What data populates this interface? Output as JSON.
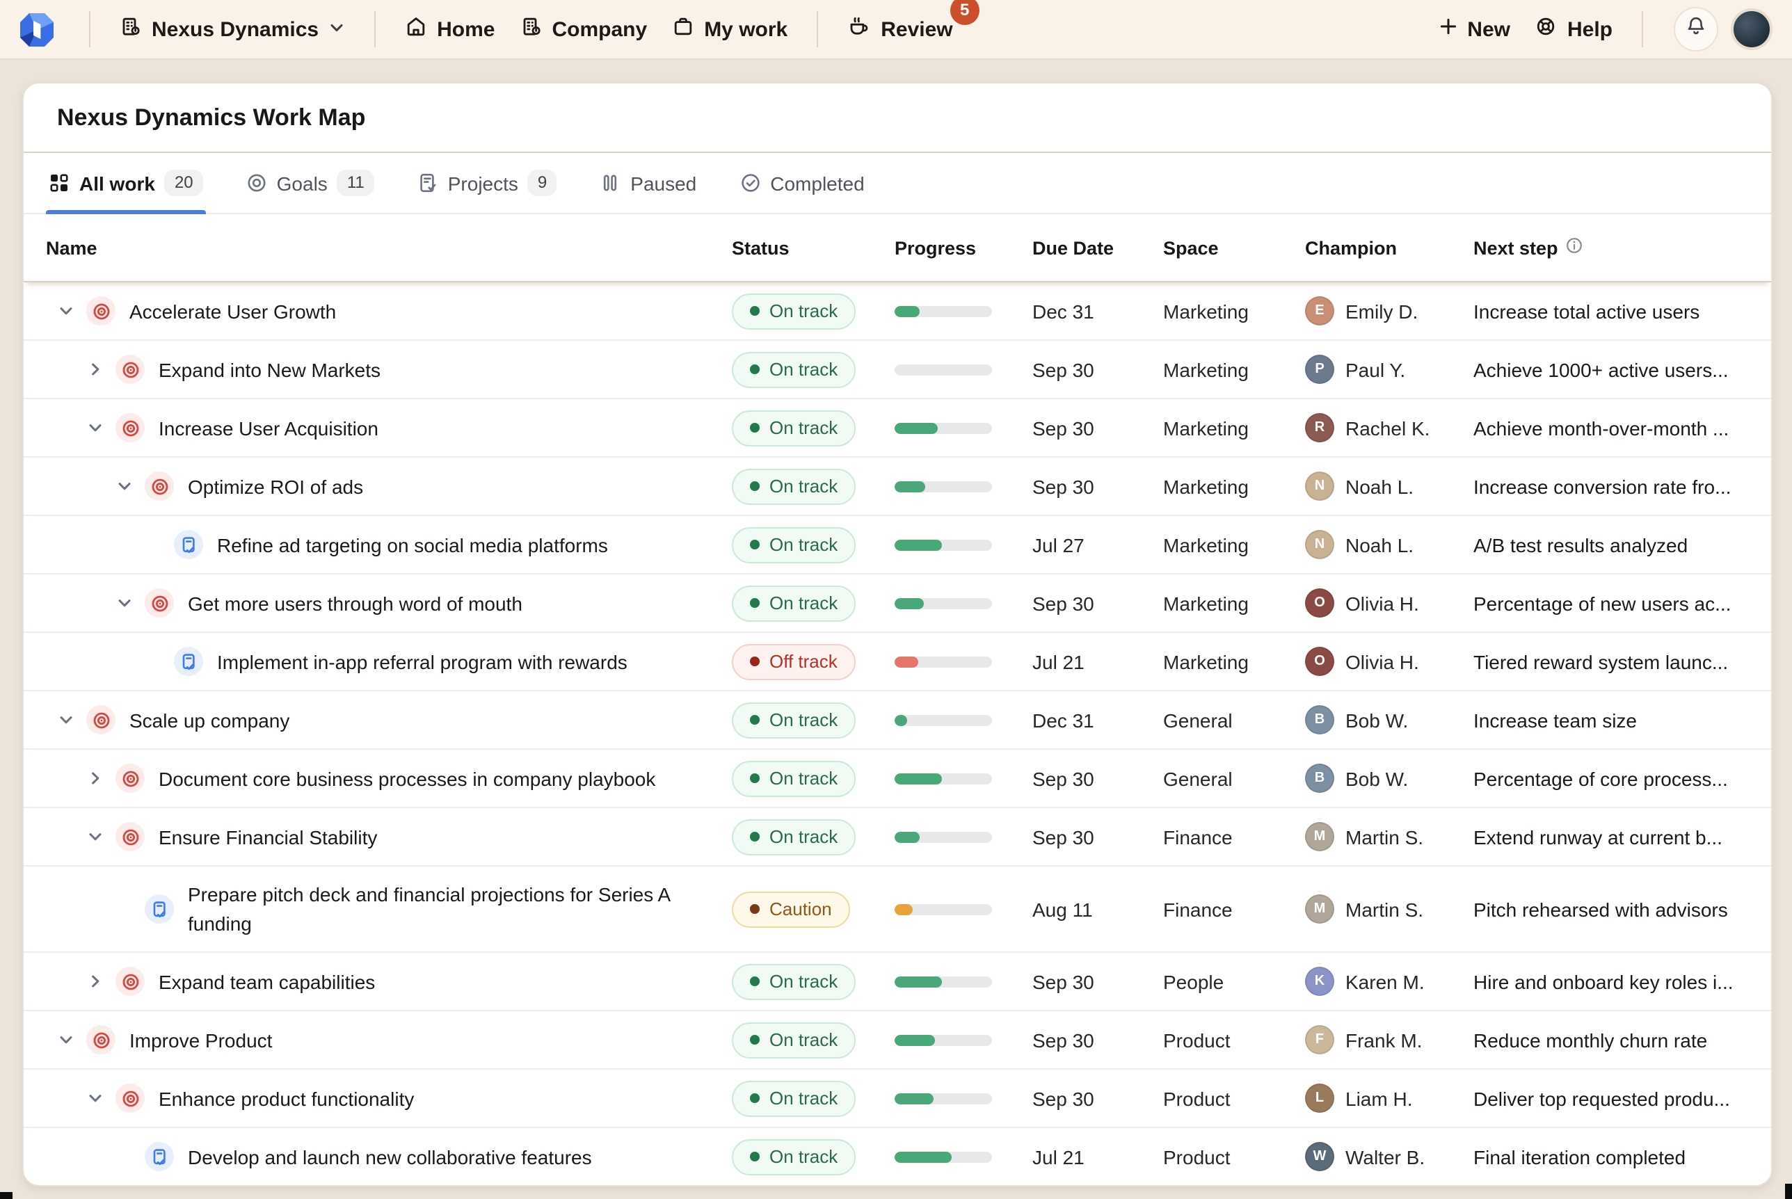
{
  "nav": {
    "org_label": "Nexus Dynamics",
    "items": [
      {
        "label": "Home",
        "icon": "home-icon"
      },
      {
        "label": "Company",
        "icon": "company-icon"
      },
      {
        "label": "My work",
        "icon": "briefcase-icon"
      }
    ],
    "review_label": "Review",
    "review_badge": "5",
    "new_label": "New",
    "help_label": "Help"
  },
  "page": {
    "title": "Nexus Dynamics Work Map"
  },
  "tabs": [
    {
      "label": "All work",
      "count": "20",
      "icon": "grid",
      "active": true
    },
    {
      "label": "Goals",
      "count": "11",
      "icon": "target",
      "active": false
    },
    {
      "label": "Projects",
      "count": "9",
      "icon": "clipboard",
      "active": false
    },
    {
      "label": "Paused",
      "count": "",
      "icon": "pause",
      "active": false
    },
    {
      "label": "Completed",
      "count": "",
      "icon": "check",
      "active": false
    }
  ],
  "table": {
    "columns": [
      "Name",
      "Status",
      "Progress",
      "Due Date",
      "Space",
      "Champion",
      "Next step"
    ],
    "rows": [
      {
        "name": "Accelerate User Growth",
        "type": "goal",
        "level": 0,
        "expand": "down",
        "status": "On track",
        "status_type": "on",
        "progress": 25,
        "due": "Dec 31",
        "space": "Marketing",
        "champion": "Emily D.",
        "avatar_color": "#c98f75",
        "next": "Increase total active users",
        "two_line": false
      },
      {
        "name": "Expand into New Markets",
        "type": "goal",
        "level": 1,
        "expand": "right",
        "status": "On track",
        "status_type": "on",
        "progress": 0,
        "due": "Sep 30",
        "space": "Marketing",
        "champion": "Paul Y.",
        "avatar_color": "#6b7a8c",
        "next": "Achieve 1000+ active users...",
        "two_line": false
      },
      {
        "name": "Increase User Acquisition",
        "type": "goal",
        "level": 1,
        "expand": "down",
        "status": "On track",
        "status_type": "on",
        "progress": 44,
        "due": "Sep 30",
        "space": "Marketing",
        "champion": "Rachel K.",
        "avatar_color": "#8c5a52",
        "next": "Achieve month-over-month ...",
        "two_line": false
      },
      {
        "name": "Optimize ROI of ads",
        "type": "goal",
        "level": 2,
        "expand": "down",
        "status": "On track",
        "status_type": "on",
        "progress": 31,
        "due": "Sep 30",
        "space": "Marketing",
        "champion": "Noah L.",
        "avatar_color": "#c9b293",
        "next": "Increase conversion rate fro...",
        "two_line": false
      },
      {
        "name": "Refine ad targeting on social media platforms",
        "type": "project",
        "level": 3,
        "expand": "none",
        "status": "On track",
        "status_type": "on",
        "progress": 48,
        "due": "Jul 27",
        "space": "Marketing",
        "champion": "Noah L.",
        "avatar_color": "#c9b293",
        "next": "A/B test results analyzed",
        "two_line": false
      },
      {
        "name": "Get more users through word of mouth",
        "type": "goal",
        "level": 2,
        "expand": "down",
        "status": "On track",
        "status_type": "on",
        "progress": 30,
        "due": "Sep 30",
        "space": "Marketing",
        "champion": "Olivia H.",
        "avatar_color": "#8c4a46",
        "next": "Percentage of new users ac...",
        "two_line": false
      },
      {
        "name": "Implement in-app referral program with rewards",
        "type": "project",
        "level": 3,
        "expand": "none",
        "status": "Off track",
        "status_type": "off",
        "progress": 24,
        "due": "Jul 21",
        "space": "Marketing",
        "champion": "Olivia H.",
        "avatar_color": "#8c4a46",
        "next": "Tiered reward system launc...",
        "two_line": false
      },
      {
        "name": "Scale up company",
        "type": "goal",
        "level": 0,
        "expand": "down",
        "status": "On track",
        "status_type": "on",
        "progress": 13,
        "due": "Dec 31",
        "space": "General",
        "champion": "Bob W.",
        "avatar_color": "#7d8fa3",
        "next": "Increase team size",
        "two_line": false
      },
      {
        "name": "Document core business processes in company playbook",
        "type": "goal",
        "level": 1,
        "expand": "right",
        "status": "On track",
        "status_type": "on",
        "progress": 48,
        "due": "Sep 30",
        "space": "General",
        "champion": "Bob W.",
        "avatar_color": "#7d8fa3",
        "next": "Percentage of core process...",
        "two_line": false
      },
      {
        "name": "Ensure Financial Stability",
        "type": "goal",
        "level": 1,
        "expand": "down",
        "status": "On track",
        "status_type": "on",
        "progress": 26,
        "due": "Sep 30",
        "space": "Finance",
        "champion": "Martin S.",
        "avatar_color": "#b0a79a",
        "next": "Extend runway at current b...",
        "two_line": false
      },
      {
        "name": "Prepare pitch deck and financial projections for Series A funding",
        "type": "project",
        "level": 2,
        "expand": "none",
        "status": "Caution",
        "status_type": "caution",
        "progress": 18,
        "due": "Aug 11",
        "space": "Finance",
        "champion": "Martin S.",
        "avatar_color": "#b0a79a",
        "next": "Pitch rehearsed with advisors",
        "two_line": true
      },
      {
        "name": "Expand team capabilities",
        "type": "goal",
        "level": 1,
        "expand": "right",
        "status": "On track",
        "status_type": "on",
        "progress": 48,
        "due": "Sep 30",
        "space": "People",
        "champion": "Karen M.",
        "avatar_color": "#8b93c9",
        "next": "Hire and onboard key roles i...",
        "two_line": false
      },
      {
        "name": "Improve Product",
        "type": "goal",
        "level": 0,
        "expand": "down",
        "status": "On track",
        "status_type": "on",
        "progress": 42,
        "due": "Sep 30",
        "space": "Product",
        "champion": "Frank M.",
        "avatar_color": "#cbb79b",
        "next": "Reduce monthly churn rate",
        "two_line": false
      },
      {
        "name": "Enhance product functionality",
        "type": "goal",
        "level": 1,
        "expand": "down",
        "status": "On track",
        "status_type": "on",
        "progress": 40,
        "due": "Sep 30",
        "space": "Product",
        "champion": "Liam H.",
        "avatar_color": "#9a7a5c",
        "next": "Deliver top requested produ...",
        "two_line": false
      },
      {
        "name": "Develop and launch new collaborative features",
        "type": "project",
        "level": 2,
        "expand": "none",
        "status": "On track",
        "status_type": "on",
        "progress": 59,
        "due": "Jul 21",
        "space": "Product",
        "champion": "Walter B.",
        "avatar_color": "#5c6b7a",
        "next": "Final iteration completed",
        "two_line": false
      }
    ]
  },
  "colors": {
    "accent_blue": "#4d7be0",
    "review_badge": "#cc4e2b",
    "goal_icon": "#d8453e",
    "project_icon": "#3f7bf0",
    "status": {
      "on": {
        "bg": "#f1faf4",
        "border": "#cde9d5",
        "dot": "#217a4b",
        "text": "#2a6a49",
        "bar": "#49a87a"
      },
      "off": {
        "bg": "#fdf2f0",
        "border": "#f3d0c8",
        "dot": "#9a2619",
        "text": "#b23122",
        "bar": "#e57569"
      },
      "caution": {
        "bg": "#fdf8e8",
        "border": "#eddc9e",
        "dot": "#7a3a16",
        "text": "#8f5718",
        "bar": "#e6a33e"
      }
    }
  }
}
